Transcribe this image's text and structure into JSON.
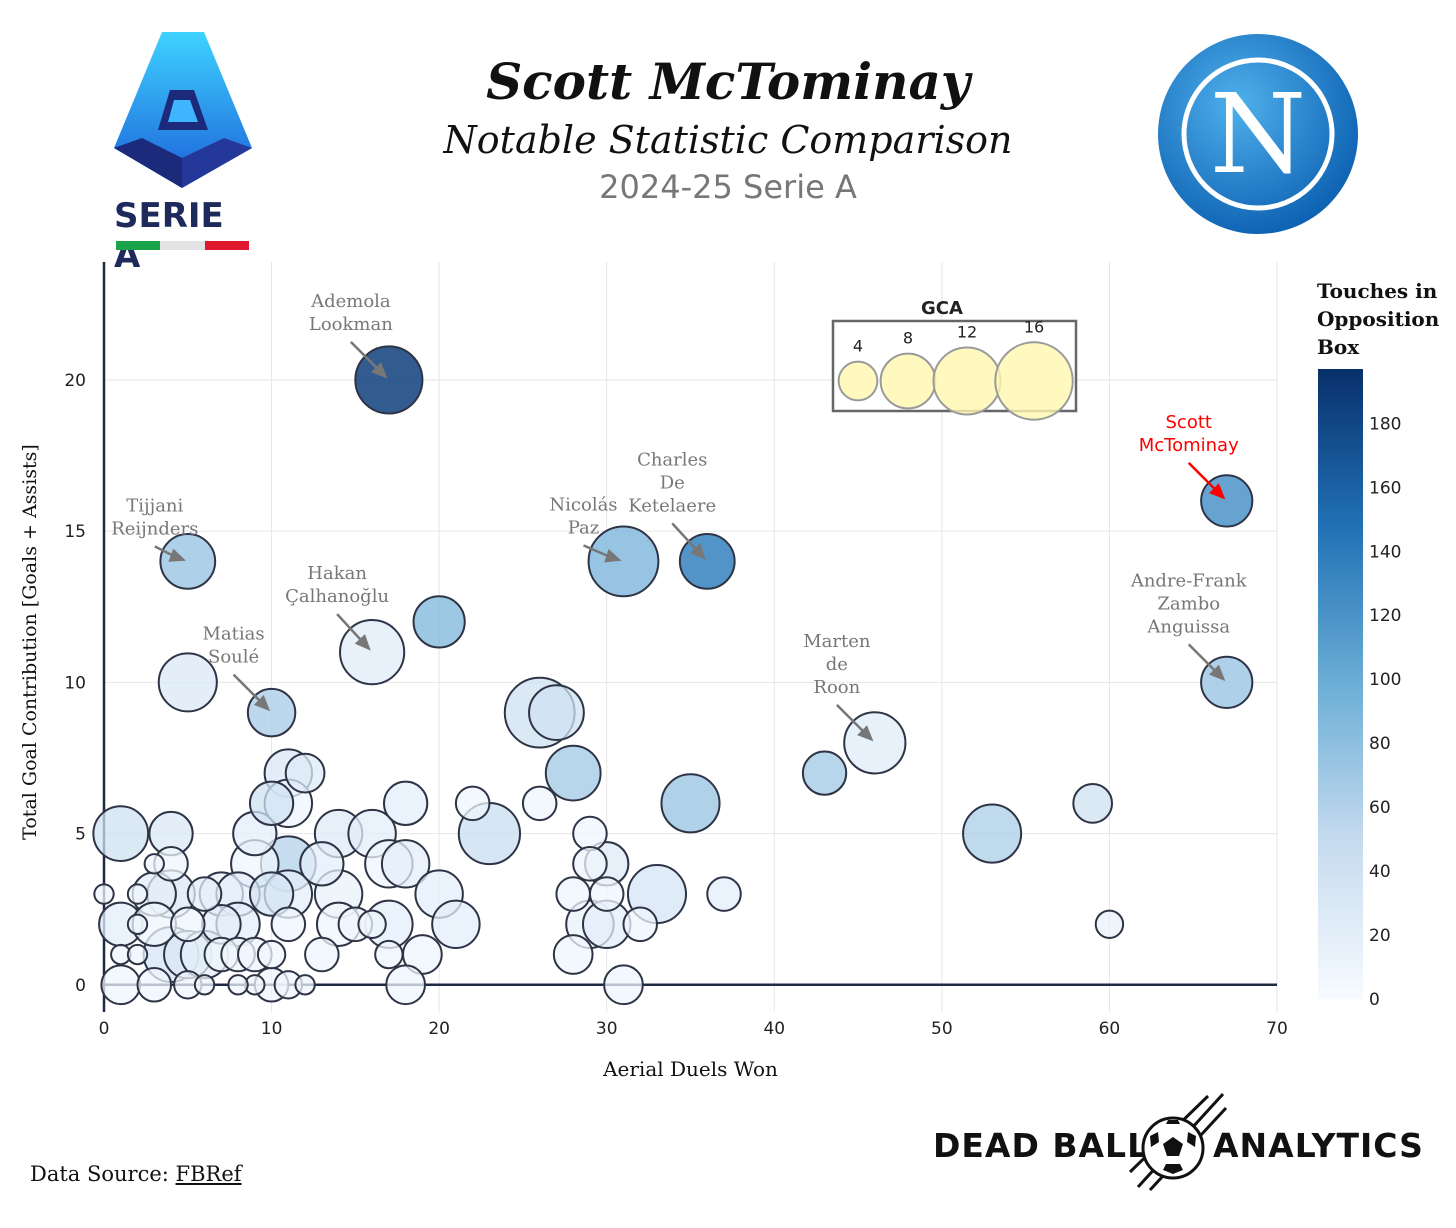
{
  "header": {
    "title": "Scott McTominay",
    "subtitle": "Notable Statistic Comparison",
    "season": "2024-25 Serie A"
  },
  "logos": {
    "league_text": "SERIE A",
    "club_letter": "N"
  },
  "footer": {
    "source_prefix": "Data Source: ",
    "source_link": "FBRef",
    "brand_left": "DEAD BALL",
    "brand_right": "ANALYTICS"
  },
  "chart_data": {
    "type": "scatter",
    "title": "Scott McTominay",
    "xlabel": "Aerial Duels Won",
    "ylabel": "Total Goal Contribution [Goals + Assists]",
    "xlim": [
      0,
      70
    ],
    "ylim": [
      -0.9,
      23.9
    ],
    "xticks": [
      0,
      10,
      20,
      30,
      40,
      50,
      60,
      70
    ],
    "yticks": [
      0,
      5,
      10,
      15,
      20
    ],
    "size_legend": {
      "title": "GCA",
      "values": [
        4,
        8,
        12,
        16
      ]
    },
    "colorbar": {
      "title": [
        "Touches in",
        "Opposition",
        "Box"
      ],
      "range": [
        0,
        197
      ],
      "ticks": [
        0,
        20,
        40,
        60,
        80,
        100,
        120,
        140,
        160,
        180
      ]
    },
    "colors": {
      "highlight": "#ff0000",
      "annotation": "#777777",
      "scale_low": "#f7fbff",
      "scale_high": "#08306b",
      "axis": "#1e2a44"
    },
    "highlighted": [
      {
        "name": "Scott McTominay",
        "label": [
          "Scott",
          "McTominay"
        ],
        "x": 67,
        "y": 16,
        "gca": 7,
        "touches": 120
      },
      {
        "name": "Ademola Lookman",
        "label": [
          "Ademola",
          "Lookman"
        ],
        "x": 17,
        "y": 20,
        "gca": 12,
        "touches": 185
      },
      {
        "name": "Tijjani Reijnders",
        "label": [
          "Tijjani",
          "Reijnders"
        ],
        "x": 5,
        "y": 14,
        "gca": 8,
        "touches": 70
      },
      {
        "name": "Nicolás Paz",
        "label": [
          "Nicolás",
          "Paz"
        ],
        "x": 31,
        "y": 14,
        "gca": 13,
        "touches": 85
      },
      {
        "name": "Charles De Ketelaere",
        "label": [
          "Charles",
          "De",
          "Ketelaere"
        ],
        "x": 36,
        "y": 14,
        "gca": 8,
        "touches": 135
      },
      {
        "name": "Hakan Çalhanoğlu",
        "label": [
          "Hakan",
          "Çalhanoğlu"
        ],
        "x": 16,
        "y": 11,
        "gca": 11,
        "touches": 20
      },
      {
        "name": "Matias Soulé",
        "label": [
          "Matias",
          "Soulé"
        ],
        "x": 10,
        "y": 9,
        "gca": 6,
        "touches": 60
      },
      {
        "name": "Marten de Roon",
        "label": [
          "Marten",
          "de",
          "Roon"
        ],
        "x": 46,
        "y": 8,
        "gca": 10,
        "touches": 20
      },
      {
        "name": "Andre-Frank Zambo Anguissa",
        "label": [
          "Andre-Frank",
          "Zambo",
          "Anguissa"
        ],
        "x": 67,
        "y": 10,
        "gca": 7,
        "touches": 70
      }
    ],
    "points": [
      [
        5,
        10,
        9,
        30
      ],
      [
        20,
        12,
        7,
        90
      ],
      [
        26,
        9,
        13,
        40
      ],
      [
        27,
        9,
        8,
        40
      ],
      [
        28,
        7,
        8,
        70
      ],
      [
        43,
        7,
        5,
        70
      ],
      [
        35,
        6,
        9,
        75
      ],
      [
        53,
        5,
        9,
        65
      ],
      [
        59,
        6,
        4,
        40
      ],
      [
        23,
        5,
        10,
        45
      ],
      [
        33,
        3,
        9,
        35
      ],
      [
        60,
        2,
        2,
        15
      ],
      [
        37,
        3,
        3,
        20
      ],
      [
        1,
        5,
        8,
        40
      ],
      [
        4,
        5,
        5,
        30
      ],
      [
        9,
        5,
        5,
        20
      ],
      [
        11,
        7,
        6,
        30
      ],
      [
        12,
        7,
        4,
        25
      ],
      [
        10,
        6,
        5,
        40
      ],
      [
        11,
        6,
        6,
        10
      ],
      [
        14,
        5,
        6,
        25
      ],
      [
        16,
        5,
        6,
        20
      ],
      [
        18,
        6,
        5,
        20
      ],
      [
        22,
        6,
        3,
        10
      ],
      [
        26,
        6,
        3,
        10
      ],
      [
        29,
        5,
        3,
        10
      ],
      [
        9,
        4,
        6,
        10
      ],
      [
        11,
        4,
        8,
        60
      ],
      [
        13,
        4,
        5,
        20
      ],
      [
        17,
        4,
        6,
        10
      ],
      [
        18,
        4,
        6,
        20
      ],
      [
        4,
        4,
        3,
        10
      ],
      [
        3,
        4,
        1,
        10
      ],
      [
        30,
        4,
        5,
        25
      ],
      [
        29,
        4,
        3,
        10
      ],
      [
        3,
        3,
        5,
        20
      ],
      [
        4,
        3,
        6,
        30
      ],
      [
        6,
        3,
        3,
        20
      ],
      [
        7,
        3,
        5,
        15
      ],
      [
        8,
        3,
        5,
        20
      ],
      [
        10,
        3,
        5,
        35
      ],
      [
        11,
        3,
        6,
        20
      ],
      [
        14,
        3,
        6,
        15
      ],
      [
        20,
        3,
        6,
        20
      ],
      [
        28,
        3,
        3,
        10
      ],
      [
        30,
        3,
        3,
        10
      ],
      [
        0,
        3,
        1,
        10
      ],
      [
        2,
        3,
        1,
        10
      ],
      [
        1,
        2,
        5,
        20
      ],
      [
        3,
        2,
        5,
        10
      ],
      [
        5,
        2,
        3,
        10
      ],
      [
        7,
        2,
        4,
        20
      ],
      [
        8,
        2,
        5,
        20
      ],
      [
        11,
        2,
        3,
        10
      ],
      [
        14,
        2,
        5,
        10
      ],
      [
        15,
        2,
        3,
        10
      ],
      [
        16,
        2,
        2,
        10
      ],
      [
        17,
        2,
        6,
        20
      ],
      [
        21,
        2,
        6,
        20
      ],
      [
        29,
        2,
        6,
        15
      ],
      [
        30,
        2,
        6,
        20
      ],
      [
        32,
        2,
        3,
        10
      ],
      [
        2,
        2,
        1,
        10
      ],
      [
        4,
        1,
        8,
        35
      ],
      [
        5,
        1,
        6,
        30
      ],
      [
        6,
        1,
        6,
        20
      ],
      [
        7,
        1,
        3,
        10
      ],
      [
        8,
        1,
        3,
        10
      ],
      [
        9,
        1,
        3,
        10
      ],
      [
        10,
        1,
        2,
        10
      ],
      [
        13,
        1,
        3,
        10
      ],
      [
        17,
        1,
        2,
        10
      ],
      [
        19,
        1,
        4,
        10
      ],
      [
        28,
        1,
        4,
        10
      ],
      [
        1,
        1,
        1,
        10
      ],
      [
        2,
        1,
        1,
        10
      ],
      [
        1,
        0,
        4,
        10
      ],
      [
        3,
        0,
        3,
        10
      ],
      [
        5,
        0,
        2,
        10
      ],
      [
        6,
        0,
        1,
        10
      ],
      [
        9,
        0,
        1,
        10
      ],
      [
        10,
        0,
        3,
        10
      ],
      [
        11,
        0,
        2,
        10
      ],
      [
        18,
        0,
        4,
        10
      ],
      [
        31,
        0,
        4,
        10
      ],
      [
        12,
        0,
        1,
        10
      ],
      [
        8,
        0,
        1,
        10
      ]
    ]
  }
}
